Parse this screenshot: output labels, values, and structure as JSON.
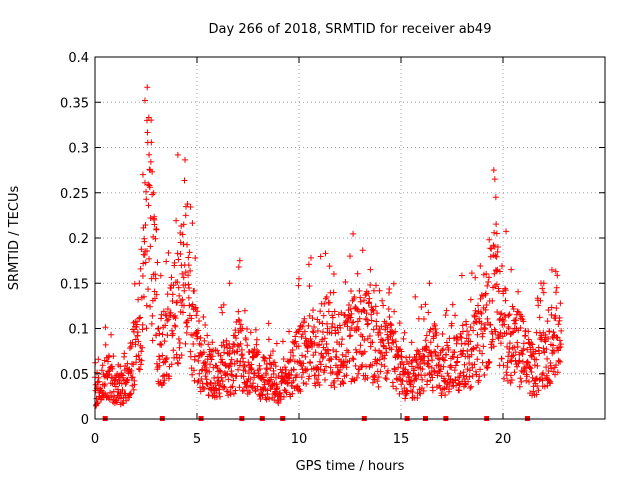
{
  "chart_data": {
    "type": "scatter",
    "title": "Day 266 of 2018, SRMTID for receiver ab49",
    "xlabel": "GPS time / hours",
    "ylabel": "SRMTID / TECUs",
    "xlim": [
      0,
      25
    ],
    "ylim": [
      0,
      0.4
    ],
    "xticks": [
      0,
      5,
      10,
      15,
      20
    ],
    "yticks": [
      0,
      0.05,
      0.1,
      0.15,
      0.2,
      0.25,
      0.3,
      0.35,
      0.4
    ],
    "xtick_labels": [
      "0",
      "5",
      "10",
      "15",
      "20"
    ],
    "ytick_labels": [
      "0",
      "0.05",
      "0.1",
      "0.15",
      "0.2",
      "0.25",
      "0.3",
      "0.35",
      "0.4"
    ],
    "grid": true,
    "marker": "+",
    "color": "#ff0000",
    "baseline_markers_x": [
      0.5,
      3.3,
      5.2,
      7.2,
      8.2,
      9.2,
      13.2,
      15.3,
      16.2,
      17.2,
      19.2,
      21.2
    ],
    "anchors": [
      [
        0.0,
        0.03
      ],
      [
        0.3,
        0.04
      ],
      [
        0.6,
        0.05
      ],
      [
        0.9,
        0.035
      ],
      [
        1.2,
        0.03
      ],
      [
        1.5,
        0.04
      ],
      [
        1.8,
        0.06
      ],
      [
        2.1,
        0.09
      ],
      [
        2.4,
        0.15
      ],
      [
        2.6,
        0.26
      ],
      [
        2.8,
        0.2
      ],
      [
        3.1,
        0.07
      ],
      [
        3.4,
        0.08
      ],
      [
        3.7,
        0.1
      ],
      [
        4.0,
        0.13
      ],
      [
        4.4,
        0.15
      ],
      [
        4.8,
        0.1
      ],
      [
        5.2,
        0.06
      ],
      [
        5.6,
        0.05
      ],
      [
        6.0,
        0.05
      ],
      [
        6.4,
        0.06
      ],
      [
        6.7,
        0.05
      ],
      [
        7.0,
        0.08
      ],
      [
        7.3,
        0.06
      ],
      [
        7.7,
        0.05
      ],
      [
        8.0,
        0.05
      ],
      [
        8.4,
        0.045
      ],
      [
        8.7,
        0.05
      ],
      [
        9.0,
        0.035
      ],
      [
        9.4,
        0.04
      ],
      [
        9.8,
        0.06
      ],
      [
        10.2,
        0.07
      ],
      [
        10.6,
        0.08
      ],
      [
        11.0,
        0.08
      ],
      [
        11.4,
        0.09
      ],
      [
        11.8,
        0.07
      ],
      [
        12.2,
        0.08
      ],
      [
        12.6,
        0.09
      ],
      [
        13.0,
        0.1
      ],
      [
        13.4,
        0.09
      ],
      [
        13.8,
        0.08
      ],
      [
        14.2,
        0.07
      ],
      [
        14.6,
        0.07
      ],
      [
        15.0,
        0.05
      ],
      [
        15.4,
        0.04
      ],
      [
        15.8,
        0.05
      ],
      [
        16.2,
        0.06
      ],
      [
        16.6,
        0.07
      ],
      [
        17.0,
        0.05
      ],
      [
        17.4,
        0.06
      ],
      [
        17.8,
        0.07
      ],
      [
        18.2,
        0.07
      ],
      [
        18.6,
        0.08
      ],
      [
        19.0,
        0.09
      ],
      [
        19.3,
        0.12
      ],
      [
        19.6,
        0.15
      ],
      [
        19.9,
        0.1
      ],
      [
        20.3,
        0.09
      ],
      [
        20.7,
        0.08
      ],
      [
        21.1,
        0.07
      ],
      [
        21.5,
        0.05
      ],
      [
        21.9,
        0.07
      ],
      [
        22.3,
        0.08
      ],
      [
        22.8,
        0.08
      ]
    ],
    "peaks": [
      [
        2.45,
        0.352
      ],
      [
        2.55,
        0.33
      ],
      [
        2.65,
        0.292
      ],
      [
        2.7,
        0.275
      ],
      [
        2.8,
        0.248
      ],
      [
        2.9,
        0.22
      ],
      [
        4.35,
        0.215
      ],
      [
        4.45,
        0.225
      ],
      [
        4.2,
        0.195
      ],
      [
        4.05,
        0.183
      ],
      [
        7.1,
        0.175
      ],
      [
        7.05,
        0.168
      ],
      [
        6.6,
        0.15
      ],
      [
        12.5,
        0.18
      ],
      [
        13.5,
        0.165
      ],
      [
        10.0,
        0.155
      ],
      [
        16.4,
        0.15
      ],
      [
        15.7,
        0.135
      ],
      [
        19.55,
        0.275
      ],
      [
        19.6,
        0.265
      ],
      [
        19.65,
        0.245
      ],
      [
        19.7,
        0.205
      ],
      [
        19.75,
        0.19
      ],
      [
        20.4,
        0.165
      ],
      [
        22.0,
        0.15
      ],
      [
        22.6,
        0.14
      ],
      [
        3.0,
        0.21
      ],
      [
        2.35,
        0.27
      ],
      [
        4.6,
        0.17
      ]
    ]
  }
}
